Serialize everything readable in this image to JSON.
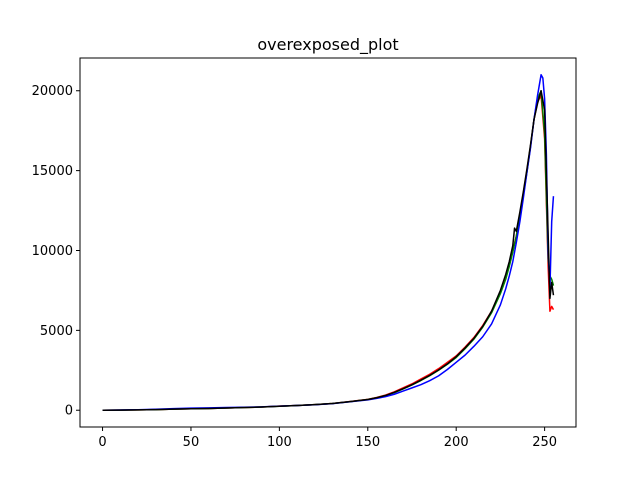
{
  "chart_data": {
    "type": "line",
    "title": "overexposed_plot",
    "xlabel": "",
    "ylabel": "",
    "xlim": [
      -12.75,
      267.75
    ],
    "ylim": [
      -1050,
      22050
    ],
    "xticks": [
      0,
      50,
      100,
      150,
      200,
      250
    ],
    "yticks": [
      0,
      5000,
      10000,
      15000,
      20000
    ],
    "grid": false,
    "legend": "none",
    "series": [
      {
        "color": "#ff0000",
        "x": [
          0,
          10,
          20,
          30,
          40,
          50,
          60,
          70,
          80,
          90,
          100,
          110,
          120,
          130,
          140,
          150,
          155,
          160,
          165,
          170,
          175,
          180,
          185,
          190,
          195,
          200,
          205,
          210,
          215,
          220,
          225,
          228,
          230,
          232,
          234,
          236,
          238,
          240,
          242,
          244,
          246,
          248,
          250,
          252,
          253,
          254,
          255
        ],
        "y": [
          0,
          10,
          20,
          40,
          70,
          90,
          110,
          140,
          170,
          200,
          260,
          300,
          350,
          420,
          550,
          680,
          800,
          950,
          1150,
          1400,
          1650,
          1950,
          2250,
          2600,
          3000,
          3400,
          3950,
          4550,
          5300,
          6200,
          7400,
          8300,
          9100,
          10000,
          10900,
          12200,
          13600,
          15000,
          16500,
          18200,
          19300,
          19700,
          17000,
          9000,
          6200,
          6500,
          6300
        ]
      },
      {
        "color": "#008000",
        "x": [
          0,
          10,
          20,
          30,
          40,
          50,
          60,
          70,
          80,
          90,
          100,
          110,
          120,
          130,
          140,
          150,
          155,
          160,
          165,
          170,
          175,
          180,
          185,
          190,
          195,
          200,
          205,
          210,
          215,
          220,
          225,
          228,
          230,
          232,
          234,
          236,
          238,
          240,
          242,
          244,
          246,
          248,
          250,
          252,
          253,
          254,
          255
        ],
        "y": [
          0,
          10,
          20,
          40,
          70,
          90,
          110,
          140,
          170,
          200,
          250,
          300,
          350,
          420,
          540,
          670,
          780,
          920,
          1100,
          1330,
          1580,
          1860,
          2160,
          2500,
          2880,
          3300,
          3850,
          4450,
          5200,
          6100,
          7300,
          8200,
          9000,
          9900,
          10900,
          12100,
          13500,
          14900,
          16500,
          18200,
          19500,
          20000,
          17300,
          9500,
          8400,
          8200,
          7800
        ]
      },
      {
        "color": "#0000ff",
        "x": [
          0,
          10,
          20,
          30,
          40,
          50,
          60,
          70,
          80,
          90,
          100,
          110,
          120,
          130,
          140,
          150,
          155,
          160,
          165,
          170,
          175,
          180,
          185,
          190,
          195,
          200,
          205,
          210,
          215,
          220,
          225,
          228,
          230,
          232,
          234,
          236,
          238,
          240,
          242,
          244,
          246,
          248,
          249,
          250,
          251,
          252,
          253,
          254,
          255
        ],
        "y": [
          0,
          15,
          30,
          60,
          100,
          130,
          150,
          170,
          190,
          210,
          260,
          300,
          340,
          410,
          530,
          650,
          740,
          850,
          1000,
          1200,
          1400,
          1600,
          1850,
          2150,
          2550,
          3000,
          3450,
          4000,
          4600,
          5400,
          6600,
          7600,
          8400,
          9300,
          10500,
          11800,
          13300,
          14900,
          16400,
          18200,
          19700,
          21000,
          20800,
          19500,
          16000,
          10000,
          7600,
          11800,
          13400
        ]
      },
      {
        "color": "#000000",
        "x": [
          0,
          10,
          20,
          30,
          40,
          50,
          60,
          70,
          80,
          90,
          100,
          110,
          120,
          130,
          140,
          150,
          155,
          160,
          165,
          170,
          175,
          180,
          185,
          190,
          195,
          200,
          205,
          210,
          215,
          220,
          225,
          228,
          230,
          232,
          233,
          234,
          236,
          238,
          240,
          242,
          244,
          246,
          248,
          250,
          252,
          253,
          254,
          255
        ],
        "y": [
          0,
          10,
          20,
          40,
          70,
          90,
          110,
          140,
          170,
          200,
          250,
          300,
          350,
          420,
          540,
          670,
          780,
          920,
          1120,
          1350,
          1600,
          1880,
          2180,
          2520,
          2900,
          3350,
          3900,
          4500,
          5250,
          6200,
          7500,
          8500,
          9300,
          10300,
          11400,
          11200,
          12400,
          13700,
          15100,
          16600,
          18200,
          19200,
          20000,
          18800,
          11000,
          7000,
          8000,
          7200
        ]
      }
    ]
  }
}
